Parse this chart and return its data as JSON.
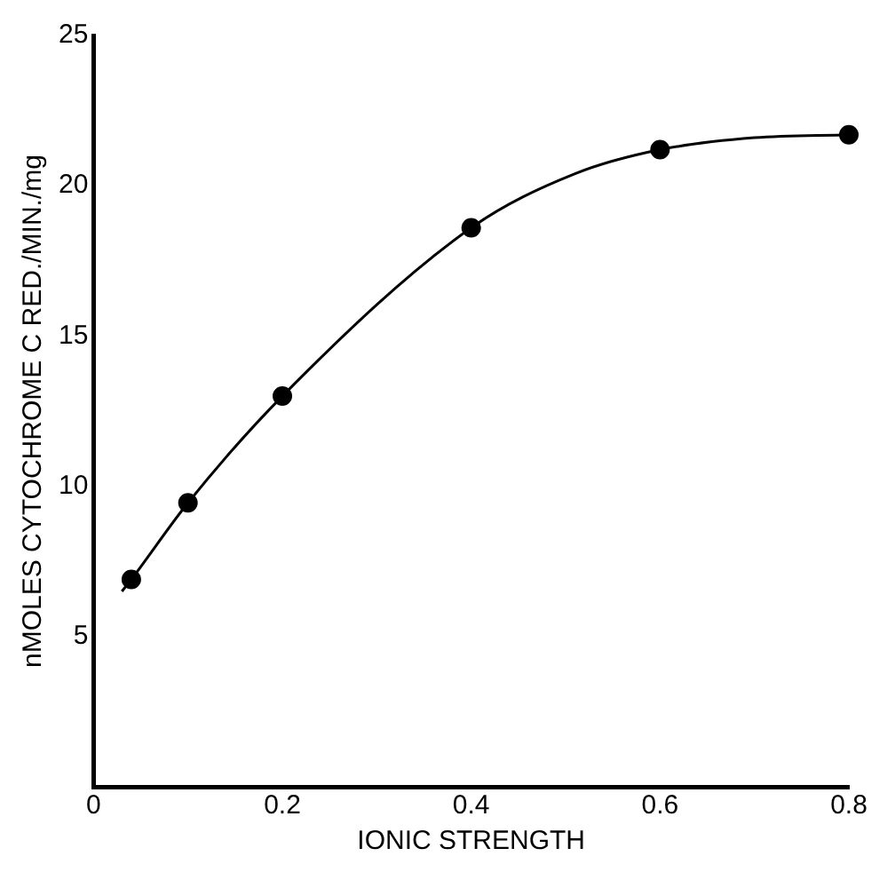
{
  "chart_data": {
    "type": "scatter",
    "xlabel": "IONIC STRENGTH",
    "ylabel": "nMOLES CYTOCHROME C RED./MIN./mg",
    "xlim": [
      0,
      0.8
    ],
    "ylim": [
      0,
      25
    ],
    "xticks": [
      0,
      0.2,
      0.4,
      0.6,
      0.8
    ],
    "yticks": [
      5,
      10,
      15,
      20,
      25
    ],
    "grid": false,
    "series": [
      {
        "type": "line",
        "color": "#000000",
        "marker": "none",
        "x": [
          0.03,
          0.04,
          0.1,
          0.2,
          0.4,
          0.51,
          0.6,
          0.7,
          0.8
        ],
        "values": [
          6.5,
          6.9,
          9.45,
          13.0,
          18.6,
          20.4,
          21.2,
          21.6,
          21.7
        ]
      },
      {
        "color": "#000000",
        "marker": "circle",
        "x": [
          0.04,
          0.1,
          0.2,
          0.4,
          0.6,
          0.8
        ],
        "values": [
          6.9,
          9.45,
          13.0,
          18.6,
          21.2,
          21.7
        ]
      }
    ]
  }
}
